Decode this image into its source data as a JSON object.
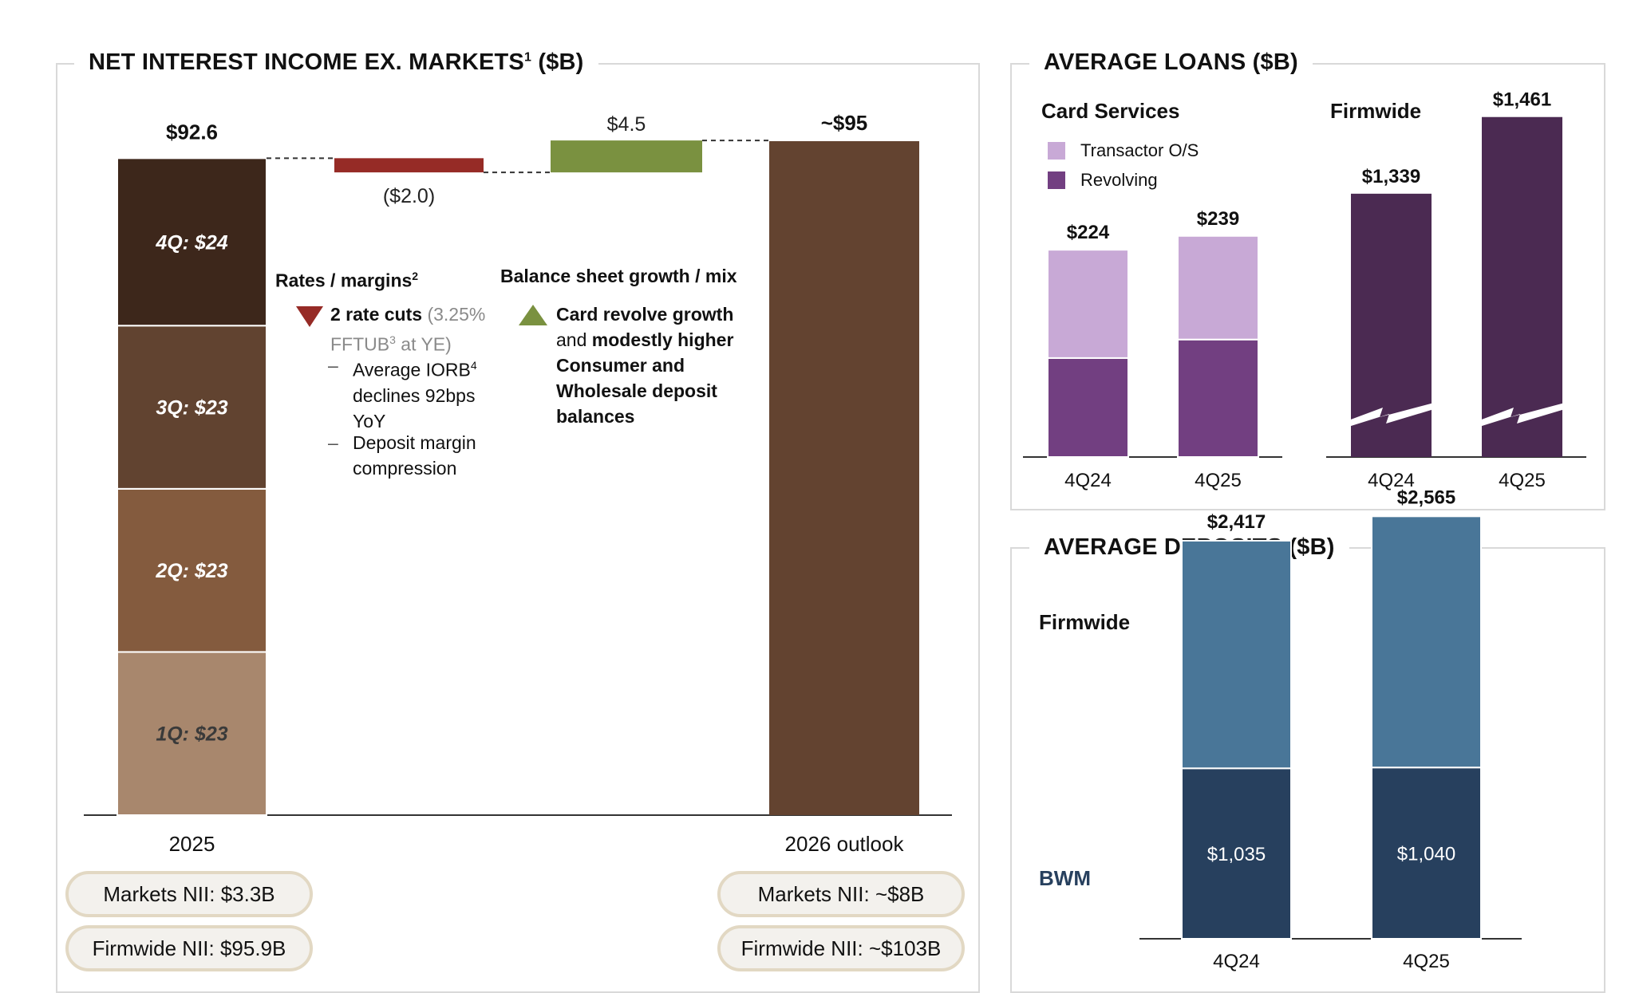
{
  "nii": {
    "title": "NET INTEREST INCOME EX. MARKETS",
    "title_sup": "1",
    "title_unit": " ($B)",
    "chart_data": {
      "type": "bar",
      "subtype": "waterfall",
      "categories": [
        "2025",
        "Rates / margins",
        "Balance sheet growth / mix",
        "2026 outlook"
      ],
      "start_total": 92.6,
      "start_label": "$92.6",
      "quarters": [
        {
          "label": "1Q: $23",
          "value": 23
        },
        {
          "label": "2Q: $23",
          "value": 23
        },
        {
          "label": "3Q: $23",
          "value": 23
        },
        {
          "label": "4Q: $24",
          "value": 24
        }
      ],
      "steps": [
        {
          "value": -2.0,
          "label": "($2.0)",
          "color": "#962b26"
        },
        {
          "value": 4.5,
          "label": "$4.5",
          "color": "#7a9140"
        }
      ],
      "end_total": 95,
      "end_label": "~$95",
      "x_labels": [
        "2025",
        "2026 outlook"
      ],
      "colors": {
        "q1": "#a8876d",
        "q2": "#845b3e",
        "q3": "#614330",
        "q4": "#3d271b",
        "outlook": "#634330"
      }
    },
    "rates": {
      "heading": "Rates / margins",
      "heading_sup": "2",
      "bullet_bold": "2 rate cuts",
      "bullet_gray_1": " (3.25%",
      "bullet_gray_2": "FFTUB",
      "bullet_gray_sup": "3",
      "bullet_gray_3": " at YE)",
      "dash": "–",
      "sub1_line1": "Average IORB",
      "sub1_sup": "4",
      "sub1_line2": "declines 92bps",
      "sub1_line3": "YoY",
      "sub2_line1": "Deposit margin",
      "sub2_line2": "compression"
    },
    "balance": {
      "heading": "Balance sheet growth / mix",
      "line1": "Card revolve growth",
      "line2a": "and ",
      "line2b": "modestly higher",
      "line3": "Consumer and",
      "line4": "Wholesale deposit",
      "line5": "balances"
    },
    "pills_left": [
      "Markets NII: $3.3B",
      "Firmwide NII: $95.9B"
    ],
    "pills_right": [
      "Markets NII: ~$8B",
      "Firmwide NII: ~$103B"
    ]
  },
  "loans": {
    "title": "AVERAGE LOANS ($B)",
    "card_heading": "Card Services",
    "firm_heading": "Firmwide",
    "legend": [
      {
        "name": "Transactor O/S",
        "color": "#c8a9d6"
      },
      {
        "name": "Revolving",
        "color": "#723f81"
      }
    ],
    "card_chart_data": {
      "type": "bar",
      "subtype": "stacked",
      "categories": [
        "4Q24",
        "4Q25"
      ],
      "series": [
        {
          "name": "Revolving",
          "values": [
            107,
            127
          ]
        },
        {
          "name": "Transactor O/S",
          "values": [
            117,
            112
          ]
        }
      ],
      "totals": [
        224,
        239
      ],
      "total_labels": [
        "$224",
        "$239"
      ]
    },
    "firm_chart_data": {
      "type": "bar",
      "categories": [
        "4Q24",
        "4Q25"
      ],
      "values": [
        1339,
        1461
      ],
      "labels": [
        "$1,339",
        "$1,461"
      ],
      "axis_break": true,
      "color": "#4b2a52"
    }
  },
  "deposits": {
    "title": "AVERAGE DEPOSITS ($B)",
    "firm_label": "Firmwide",
    "bwm_label": "BWM",
    "chart_data": {
      "type": "bar",
      "subtype": "stacked",
      "categories": [
        "4Q24",
        "4Q25"
      ],
      "series": [
        {
          "name": "BWM",
          "values": [
            1035,
            1040
          ],
          "labels": [
            "$1,035",
            "$1,040"
          ],
          "color": "#27405e"
        },
        {
          "name": "Firmwide",
          "values": [
            1382,
            1525
          ],
          "color": "#497698"
        }
      ],
      "totals": [
        2417,
        2565
      ],
      "total_labels": [
        "$2,417",
        "$2,565"
      ]
    }
  }
}
